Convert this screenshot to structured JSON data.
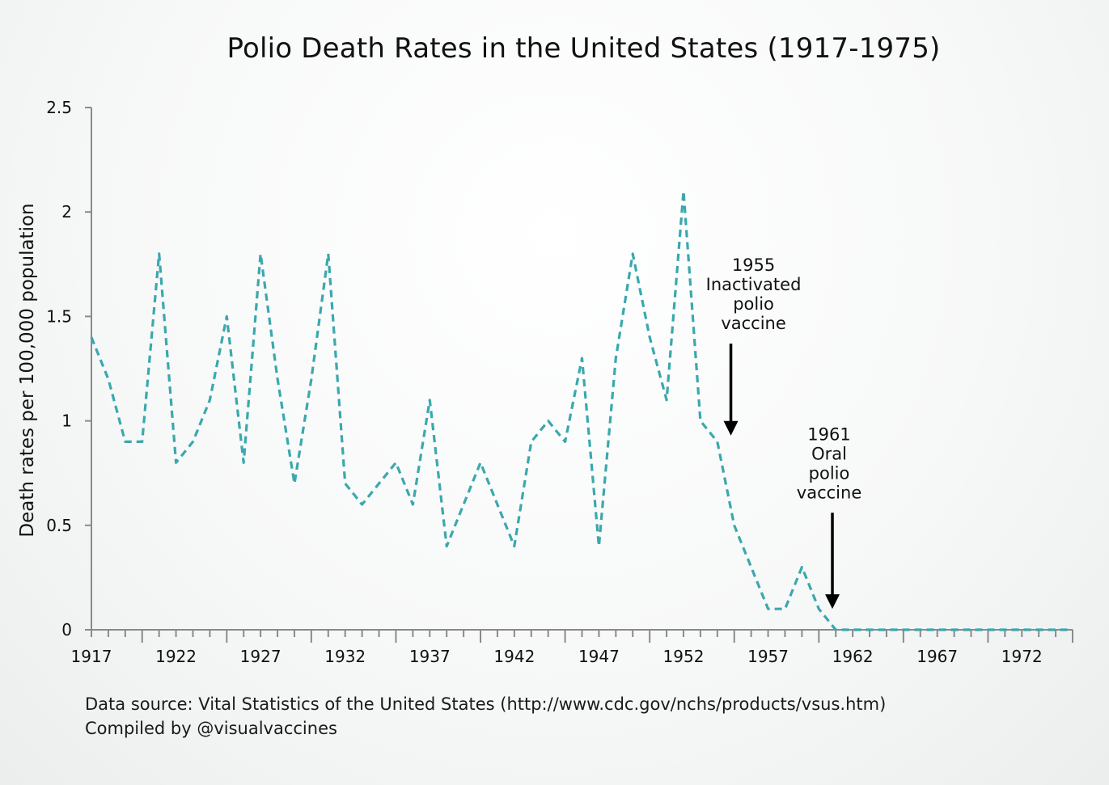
{
  "chart_data": {
    "type": "line",
    "title": "Polio Death Rates in the United States (1917-1975)",
    "xlabel": "",
    "ylabel": "Death rates per 100,000 population",
    "xlim": [
      1917,
      1975
    ],
    "ylim": [
      0,
      2.5
    ],
    "yticks": [
      0,
      0.5,
      1,
      1.5,
      2,
      2.5
    ],
    "ytick_labels": [
      "0",
      "0.5",
      "1",
      "1.5",
      "2",
      "2.5"
    ],
    "xticks_labeled": [
      1917,
      1922,
      1927,
      1932,
      1937,
      1942,
      1947,
      1952,
      1957,
      1962,
      1967,
      1972
    ],
    "xtick_labels": [
      "1917",
      "1922",
      "1927",
      "1932",
      "1937",
      "1942",
      "1947",
      "1952",
      "1957",
      "1962",
      "1967",
      "1972"
    ],
    "grid": false,
    "line_color": "#3aa8ad",
    "line_style": "dashed",
    "series": [
      {
        "x": [
          1917,
          1918,
          1919,
          1920,
          1921,
          1922,
          1923,
          1924,
          1925,
          1926,
          1927,
          1928,
          1929,
          1930,
          1931,
          1932,
          1933,
          1934,
          1935,
          1936,
          1937,
          1938,
          1939,
          1940,
          1941,
          1942,
          1943,
          1944,
          1945,
          1946,
          1947,
          1948,
          1949,
          1950,
          1951,
          1952,
          1953,
          1954,
          1955,
          1956,
          1957,
          1958,
          1959,
          1960,
          1961,
          1962,
          1963,
          1964,
          1965,
          1966,
          1967,
          1968,
          1969,
          1970,
          1971,
          1972,
          1973,
          1974,
          1975
        ],
        "values": [
          1.4,
          1.2,
          0.9,
          0.9,
          1.8,
          0.8,
          0.9,
          1.1,
          1.5,
          0.8,
          1.8,
          1.2,
          0.7,
          1.2,
          1.8,
          0.7,
          0.6,
          0.7,
          0.8,
          0.6,
          1.1,
          0.4,
          0.6,
          0.8,
          0.6,
          0.4,
          0.9,
          1.0,
          0.9,
          1.3,
          0.4,
          1.3,
          1.8,
          1.4,
          1.1,
          2.1,
          1.0,
          0.9,
          0.5,
          0.3,
          0.1,
          0.1,
          0.3,
          0.1,
          0.0,
          0.0,
          0.0,
          0.0,
          0.0,
          0.0,
          0.0,
          0.0,
          0.0,
          0.0,
          0.0,
          0.0,
          0.0,
          0.0,
          0.0
        ]
      }
    ],
    "annotations": [
      {
        "lines": [
          "1955",
          "Inactivated",
          "polio",
          "vaccine"
        ],
        "arrow_x": 1954.8,
        "arrow_from_y": 1.37,
        "arrow_to_y": 0.93
      },
      {
        "lines": [
          "1961",
          "Oral",
          "polio",
          "vaccine"
        ],
        "arrow_x": 1960.8,
        "arrow_from_y": 0.56,
        "arrow_to_y": 0.1
      }
    ]
  },
  "footer": {
    "source": "Data source: Vital Statistics of the United States (http://www.cdc.gov/nchs/products/vsus.htm)",
    "compiled": "Compiled by @visualvaccines"
  }
}
